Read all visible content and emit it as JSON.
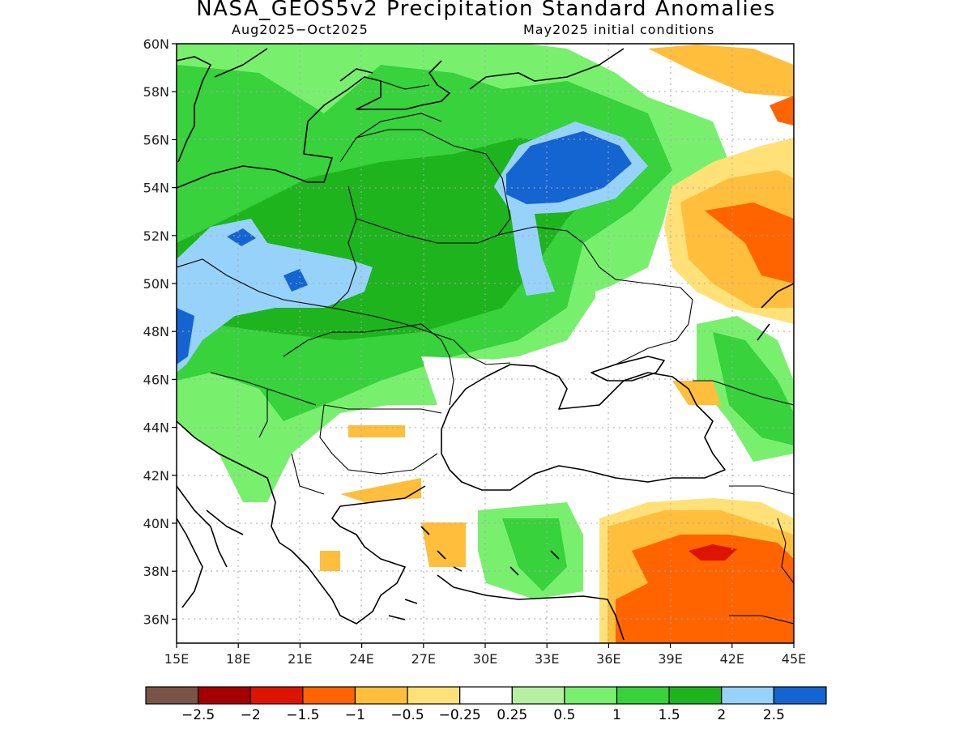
{
  "title": "NASA_GEOS5v2 Precipitation Standard Anomalies",
  "subtitle_left": "Aug2025−Oct2025",
  "subtitle_right": "May2025 initial conditions",
  "map": {
    "lon_range": [
      15,
      45
    ],
    "lat_range": [
      35,
      60
    ],
    "lon_ticks": [
      "15E",
      "18E",
      "21E",
      "24E",
      "27E",
      "30E",
      "33E",
      "36E",
      "39E",
      "42E",
      "45E"
    ],
    "lat_ticks": [
      "60N",
      "58N",
      "56N",
      "54N",
      "52N",
      "50N",
      "48N",
      "46N",
      "44N",
      "42N",
      "40N",
      "38N",
      "36N"
    ],
    "grid_lines": true
  },
  "colorbar": {
    "colors": [
      "#7a5547",
      "#a50000",
      "#dc1400",
      "#ff6400",
      "#ffbe3c",
      "#ffe178",
      "#ffffff",
      "#b4f0a0",
      "#78f06e",
      "#37d23c",
      "#1eb41e",
      "#96d2fa",
      "#1464d2"
    ],
    "labels": [
      "−2.5",
      "−2",
      "−1.5",
      "−1",
      "−0.5",
      "−0.25",
      "0.25",
      "0.5",
      "1",
      "1.5",
      "2",
      "2.5"
    ]
  }
}
